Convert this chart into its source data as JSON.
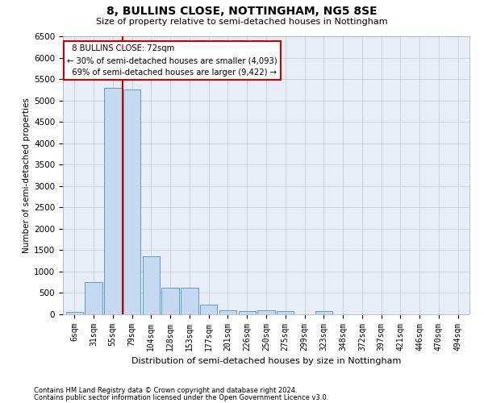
{
  "title": "8, BULLINS CLOSE, NOTTINGHAM, NG5 8SE",
  "subtitle": "Size of property relative to semi-detached houses in Nottingham",
  "xlabel": "Distribution of semi-detached houses by size in Nottingham",
  "ylabel": "Number of semi-detached properties",
  "categories": [
    "6sqm",
    "31sqm",
    "55sqm",
    "79sqm",
    "104sqm",
    "128sqm",
    "153sqm",
    "177sqm",
    "201sqm",
    "226sqm",
    "250sqm",
    "275sqm",
    "299sqm",
    "323sqm",
    "348sqm",
    "372sqm",
    "397sqm",
    "421sqm",
    "446sqm",
    "470sqm",
    "494sqm"
  ],
  "values": [
    50,
    750,
    5300,
    5250,
    1350,
    625,
    620,
    230,
    100,
    70,
    100,
    70,
    0,
    80,
    0,
    0,
    0,
    0,
    0,
    0,
    0
  ],
  "bar_color": "#c5d9f1",
  "bar_edge_color": "#5b9bd5",
  "property_label": "8 BULLINS CLOSE: 72sqm",
  "smaller_pct": 30,
  "smaller_count": "4,093",
  "larger_pct": 69,
  "larger_count": "9,422",
  "vline_x": 2.5,
  "ylim_max": 6500,
  "yticks": [
    0,
    500,
    1000,
    1500,
    2000,
    2500,
    3000,
    3500,
    4000,
    4500,
    5000,
    5500,
    6000,
    6500
  ],
  "grid_color": "#c0c8d8",
  "background_color": "#e8eef8",
  "red_line_color": "#cc0000",
  "footer1": "Contains HM Land Registry data © Crown copyright and database right 2024.",
  "footer2": "Contains public sector information licensed under the Open Government Licence v3.0."
}
